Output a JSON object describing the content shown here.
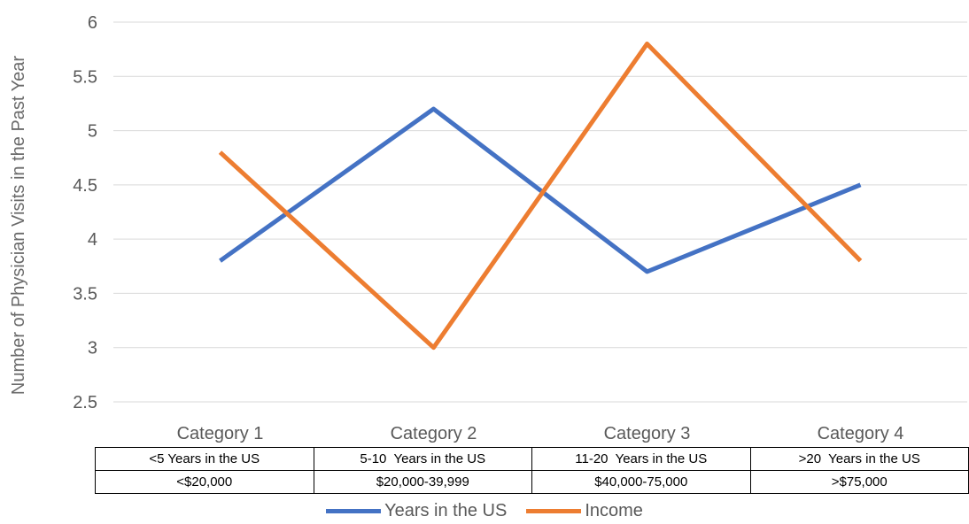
{
  "chart_data": {
    "type": "line",
    "ylabel": "Number of Physician Visits in the Past Year",
    "categories": [
      "Category 1",
      "Category 2",
      "Category 3",
      "Category 4"
    ],
    "ylim": [
      2.5,
      6
    ],
    "yticks": [
      "2.5",
      "3",
      "3.5",
      "4",
      "4.5",
      "5",
      "5.5",
      "6"
    ],
    "grid": true,
    "series": [
      {
        "name": "Years in the US",
        "color": "#4472c4",
        "values": [
          3.8,
          5.2,
          3.7,
          4.5
        ]
      },
      {
        "name": "Income",
        "color": "#ed7d31",
        "values": [
          4.8,
          3.0,
          5.8,
          3.8
        ]
      }
    ],
    "table_rows": [
      [
        "<5 Years in the US",
        "5-10  Years in the US",
        "11-20  Years in the US",
        ">20  Years in the US"
      ],
      [
        "<$20,000",
        "$20,000-39,999",
        "$40,000-75,000",
        ">$75,000"
      ]
    ],
    "legend_position": "bottom"
  }
}
